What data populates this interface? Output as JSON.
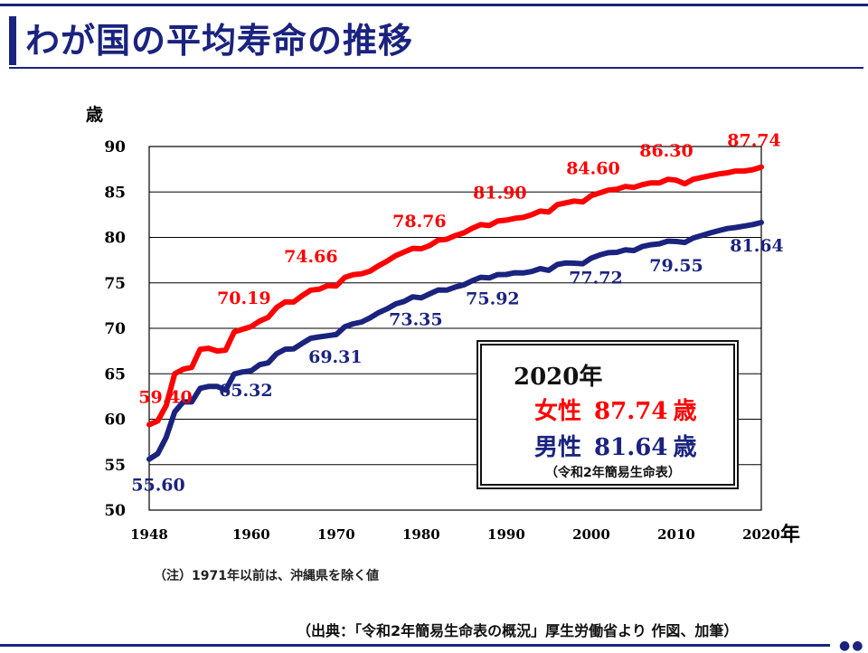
{
  "page": {
    "title": "わが国の平均寿命の推移"
  },
  "note": "（注）1971年以前は、沖縄県を除く値",
  "source": "（出典：「令和2年簡易生命表の概況」厚生労働省より 作図、加筆）",
  "legend_box": {
    "year": "2020年",
    "female_label": "女性",
    "female_value": "87.74",
    "female_unit": "歳",
    "male_label": "男性",
    "male_value": "81.64",
    "male_unit": "歳",
    "source": "（令和2年簡易生命表）"
  },
  "colors": {
    "female": "#ff0000",
    "male": "#1a237e",
    "title": "#1a237e"
  },
  "chart_data": {
    "type": "line",
    "title": "わが国の平均寿命の推移",
    "ylabel": "歳",
    "xlabel": "年",
    "xlim": [
      1948,
      2020
    ],
    "ylim": [
      50,
      90
    ],
    "yticks": [
      50,
      55,
      60,
      65,
      70,
      75,
      80,
      85,
      90
    ],
    "xticks": [
      1948,
      1960,
      1970,
      1980,
      1990,
      2000,
      2010,
      2020
    ],
    "grid": true,
    "series": [
      {
        "name": "女性",
        "color": "#ff0000",
        "x": [
          1948,
          1949,
          1950,
          1951,
          1952,
          1953,
          1954,
          1955,
          1956,
          1957,
          1958,
          1959,
          1960,
          1961,
          1962,
          1963,
          1964,
          1965,
          1966,
          1967,
          1968,
          1969,
          1970,
          1971,
          1972,
          1973,
          1974,
          1975,
          1976,
          1977,
          1978,
          1979,
          1980,
          1981,
          1982,
          1983,
          1984,
          1985,
          1986,
          1987,
          1988,
          1989,
          1990,
          1991,
          1992,
          1993,
          1994,
          1995,
          1996,
          1997,
          1998,
          1999,
          2000,
          2001,
          2002,
          2003,
          2004,
          2005,
          2006,
          2007,
          2008,
          2009,
          2010,
          2011,
          2012,
          2013,
          2014,
          2015,
          2016,
          2017,
          2018,
          2019,
          2020
        ],
        "y": [
          59.4,
          59.8,
          61.5,
          65.0,
          65.5,
          65.7,
          67.7,
          67.8,
          67.5,
          67.6,
          69.6,
          69.9,
          70.19,
          70.8,
          71.2,
          72.3,
          72.9,
          72.9,
          73.6,
          74.2,
          74.3,
          74.7,
          74.66,
          75.6,
          75.9,
          76.0,
          76.3,
          76.9,
          77.4,
          78.0,
          78.4,
          78.8,
          78.76,
          79.1,
          79.7,
          79.8,
          80.2,
          80.5,
          81.0,
          81.4,
          81.3,
          81.8,
          81.9,
          82.1,
          82.2,
          82.5,
          82.9,
          82.8,
          83.6,
          83.8,
          84.0,
          83.9,
          84.6,
          84.9,
          85.2,
          85.3,
          85.6,
          85.5,
          85.8,
          86.0,
          86.0,
          86.4,
          86.3,
          85.9,
          86.4,
          86.6,
          86.8,
          86.99,
          87.1,
          87.3,
          87.3,
          87.45,
          87.74
        ]
      },
      {
        "name": "男性",
        "color": "#1a237e",
        "x": [
          1948,
          1949,
          1950,
          1951,
          1952,
          1953,
          1954,
          1955,
          1956,
          1957,
          1958,
          1959,
          1960,
          1961,
          1962,
          1963,
          1964,
          1965,
          1966,
          1967,
          1968,
          1969,
          1970,
          1971,
          1972,
          1973,
          1974,
          1975,
          1976,
          1977,
          1978,
          1979,
          1980,
          1981,
          1982,
          1983,
          1984,
          1985,
          1986,
          1987,
          1988,
          1989,
          1990,
          1991,
          1992,
          1993,
          1994,
          1995,
          1996,
          1997,
          1998,
          1999,
          2000,
          2001,
          2002,
          2003,
          2004,
          2005,
          2006,
          2007,
          2008,
          2009,
          2010,
          2011,
          2012,
          2013,
          2014,
          2015,
          2016,
          2017,
          2018,
          2019,
          2020
        ],
        "y": [
          55.6,
          56.2,
          58.0,
          60.8,
          61.9,
          61.9,
          63.4,
          63.6,
          63.6,
          63.2,
          64.98,
          65.2,
          65.32,
          66.0,
          66.2,
          67.2,
          67.7,
          67.74,
          68.35,
          68.91,
          69.05,
          69.18,
          69.31,
          70.17,
          70.5,
          70.7,
          71.16,
          71.73,
          72.15,
          72.69,
          72.97,
          73.46,
          73.35,
          73.79,
          74.22,
          74.2,
          74.54,
          74.78,
          75.23,
          75.61,
          75.54,
          75.91,
          75.92,
          76.11,
          76.09,
          76.25,
          76.57,
          76.38,
          77.01,
          77.19,
          77.16,
          77.1,
          77.72,
          78.07,
          78.32,
          78.36,
          78.64,
          78.56,
          79.0,
          79.19,
          79.29,
          79.59,
          79.55,
          79.44,
          79.94,
          80.21,
          80.5,
          80.75,
          80.98,
          81.09,
          81.25,
          81.41,
          81.64
        ]
      }
    ],
    "annotations": [
      {
        "series": "女性",
        "x": 1948,
        "text": "59.40"
      },
      {
        "series": "女性",
        "x": 1960,
        "text": "70.19"
      },
      {
        "series": "女性",
        "x": 1970,
        "text": "74.66"
      },
      {
        "series": "女性",
        "x": 1980,
        "text": "78.76"
      },
      {
        "series": "女性",
        "x": 1990,
        "text": "81.90"
      },
      {
        "series": "女性",
        "x": 2000,
        "text": "84.60"
      },
      {
        "series": "女性",
        "x": 2010,
        "text": "86.30"
      },
      {
        "series": "女性",
        "x": 2020,
        "text": "87.74"
      },
      {
        "series": "男性",
        "x": 1948,
        "text": "55.60"
      },
      {
        "series": "男性",
        "x": 1960,
        "text": "65.32"
      },
      {
        "series": "男性",
        "x": 1970,
        "text": "69.31"
      },
      {
        "series": "男性",
        "x": 1980,
        "text": "73.35"
      },
      {
        "series": "男性",
        "x": 1990,
        "text": "75.92"
      },
      {
        "series": "男性",
        "x": 2000,
        "text": "77.72"
      },
      {
        "series": "男性",
        "x": 2010,
        "text": "79.55"
      },
      {
        "series": "男性",
        "x": 2020,
        "text": "81.64"
      }
    ]
  }
}
